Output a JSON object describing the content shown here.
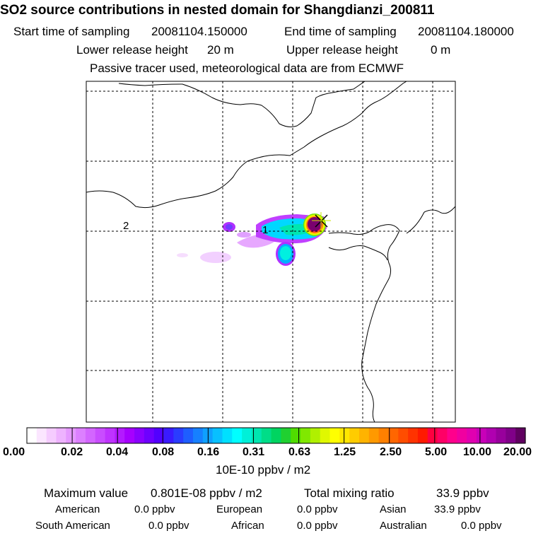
{
  "header": {
    "title": "SO2 source contributions in nested domain for Shangdianzi_200811",
    "start_label": "Start time of sampling",
    "start_value": "20081104.150000",
    "end_label": "End time of sampling",
    "end_value": "20081104.180000",
    "lower_label": "Lower release height",
    "lower_value": "20 m",
    "upper_label": "Upper release height",
    "upper_value": "0 m",
    "tracer_note": "Passive tracer used, meteorological data are from ECMWF"
  },
  "map": {
    "site_labels": [
      "1",
      "2"
    ],
    "receptor_marker": "station-cross"
  },
  "colorbar": {
    "tick_labels": [
      "0.00",
      "0.02",
      "0.04",
      "0.08",
      "0.16",
      "0.31",
      "0.63",
      "1.25",
      "2.50",
      "5.00",
      "10.00",
      "20.00"
    ],
    "unit": "10E-10 ppbv / m2",
    "colors": [
      "#ffffff",
      "#fbe6ff",
      "#f5ccff",
      "#eeb3ff",
      "#e599ff",
      "#dc80ff",
      "#d366ff",
      "#c94dff",
      "#bf33ff",
      "#b31aff",
      "#a600ff",
      "#8a00ff",
      "#6e00ff",
      "#5200ff",
      "#3a1aff",
      "#2a3cff",
      "#1e5eff",
      "#1680ff",
      "#0fa0ff",
      "#08c0ff",
      "#00e0ff",
      "#00ffff",
      "#00f0d8",
      "#00e6b0",
      "#00dd88",
      "#00d460",
      "#20d030",
      "#50dc00",
      "#80e800",
      "#b0f000",
      "#e0f800",
      "#ffff00",
      "#ffe600",
      "#ffcc00",
      "#ffb300",
      "#ff9900",
      "#ff8000",
      "#ff6600",
      "#ff4d00",
      "#ff3300",
      "#ff1a00",
      "#ff0040",
      "#ff0066",
      "#ff008c",
      "#f000a0",
      "#e000b0",
      "#c800b8",
      "#b000b0",
      "#98009c",
      "#800088",
      "#600060"
    ]
  },
  "summary": {
    "max_label": "Maximum value",
    "max_value": "0.801E-08 ppbv / m2",
    "total_label": "Total mixing ratio",
    "total_value": "33.9 ppbv",
    "regions": [
      {
        "name": "American",
        "value": "0.0 ppbv"
      },
      {
        "name": "European",
        "value": "0.0 ppbv"
      },
      {
        "name": "Asian",
        "value": "33.9 ppbv"
      },
      {
        "name": "South American",
        "value": "0.0 ppbv"
      },
      {
        "name": "African",
        "value": "0.0 ppbv"
      },
      {
        "name": "Australian",
        "value": "0.0 ppbv"
      }
    ]
  }
}
